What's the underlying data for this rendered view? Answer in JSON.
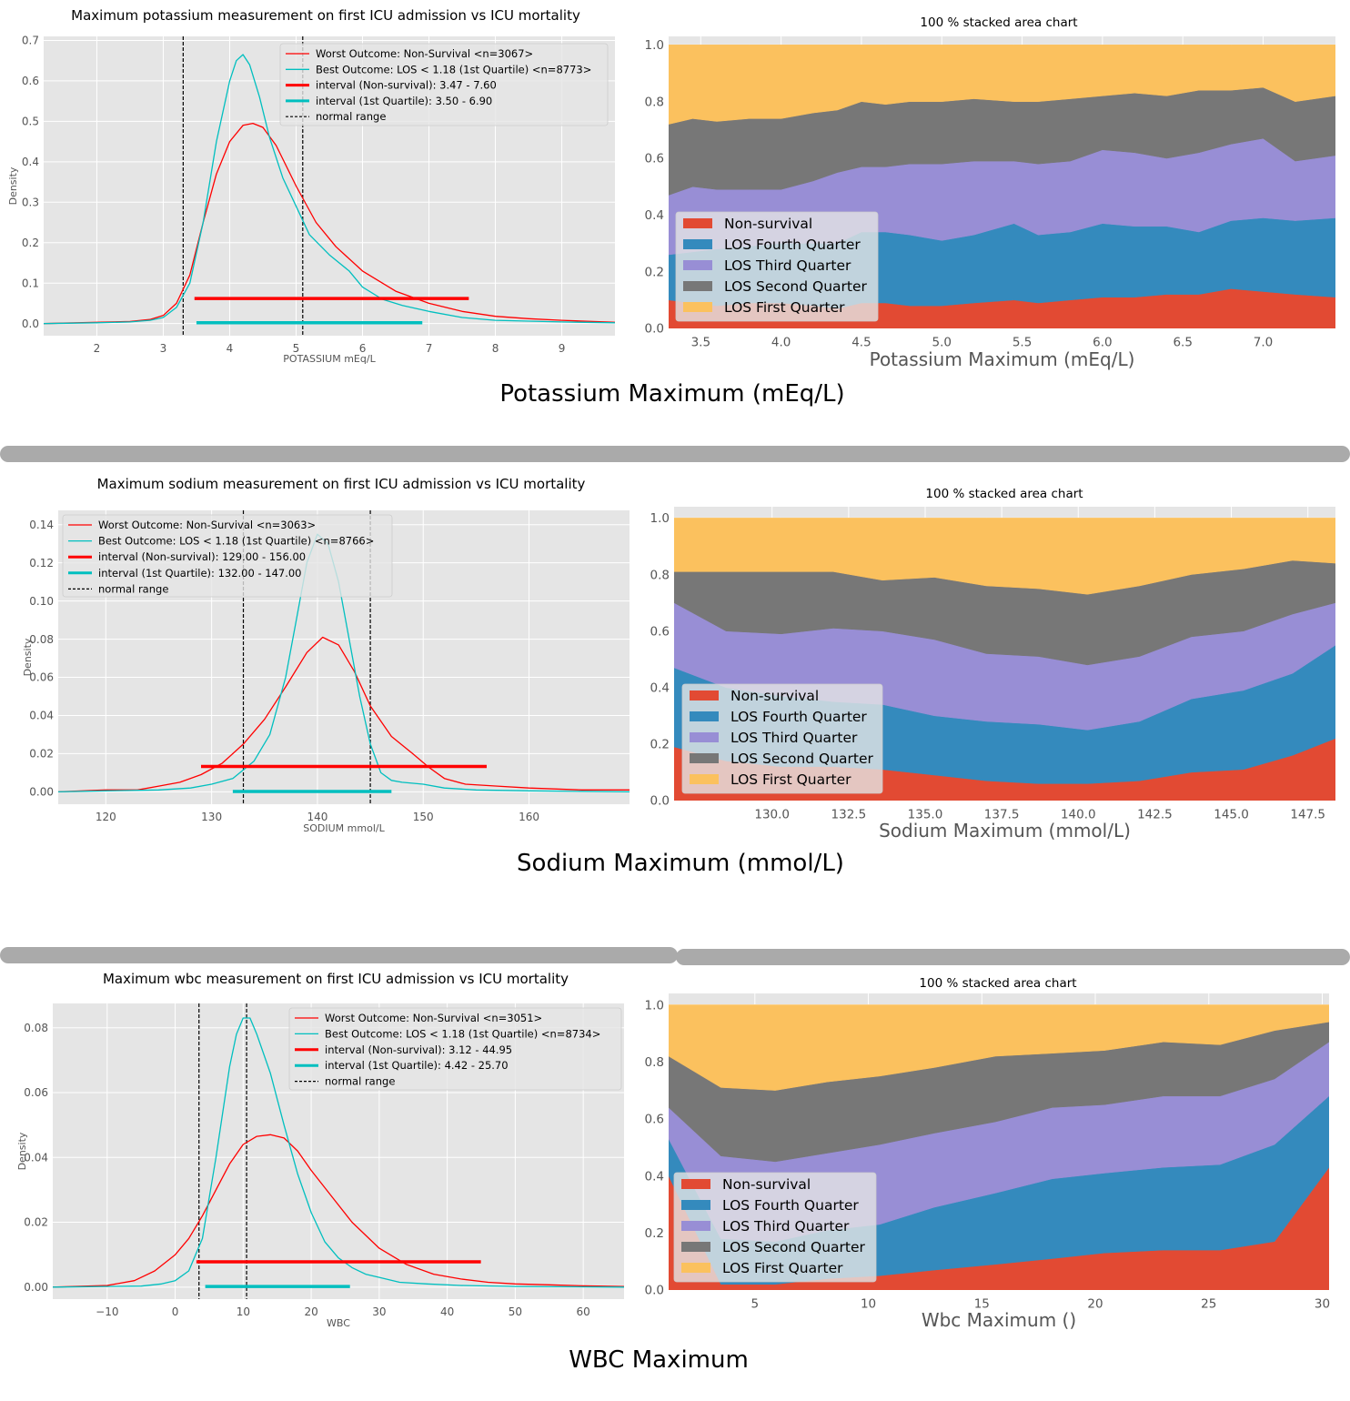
{
  "colors": {
    "nonsurvival": "#ff0000",
    "best": "#00bfbf",
    "normal": "#000000",
    "area_nonsurvival": "#e24a33",
    "area_fourth": "#348abd",
    "area_third": "#988ed5",
    "area_second": "#777777",
    "area_first": "#fbc15e",
    "panel_bg": "#e5e5e5",
    "divider": "#aaaaaa"
  },
  "panel_titles": [
    "Potassium Maximum (mEq/L)",
    "Sodium Maximum (mmol/L)",
    "WBC Maximum"
  ],
  "stacked_legend": [
    "Non-survival",
    "LOS Fourth Quarter",
    "LOS Third Quarter",
    "LOS Second Quarter",
    "LOS First Quarter"
  ],
  "chart_data": [
    {
      "type": "line",
      "title": "Maximum potassium measurement on first ICU admission vs ICU mortality",
      "xlabel": "POTASSIUM mEq/L",
      "ylabel": "Density",
      "xlim": [
        1.2,
        9.8
      ],
      "ylim": [
        -0.03,
        0.71
      ],
      "xticks": [
        2,
        3,
        4,
        5,
        6,
        7,
        8,
        9
      ],
      "yticks": [
        0.0,
        0.1,
        0.2,
        0.3,
        0.4,
        0.5,
        0.6,
        0.7
      ],
      "ytick_labels": [
        "0.0",
        "0.1",
        "0.2",
        "0.3",
        "0.4",
        "0.5",
        "0.6",
        "0.7"
      ],
      "legend": [
        "Worst Outcome: Non-Survival <n=3067>",
        "Best Outcome: LOS < 1.18 (1st Quartile) <n=8773>",
        "interval (Non-survival): 3.47 - 7.60",
        "interval (1st Quartile): 3.50 - 6.90",
        "normal range"
      ],
      "series": [
        {
          "name": "Worst Outcome: Non-Survival",
          "x": [
            1.2,
            2.0,
            2.5,
            2.8,
            3.0,
            3.2,
            3.4,
            3.6,
            3.8,
            4.0,
            4.2,
            4.35,
            4.5,
            4.7,
            5.0,
            5.3,
            5.6,
            6.0,
            6.5,
            7.0,
            7.5,
            8.0,
            8.5,
            9.0,
            9.8
          ],
          "y": [
            0.0,
            0.003,
            0.005,
            0.01,
            0.02,
            0.05,
            0.12,
            0.25,
            0.37,
            0.45,
            0.49,
            0.495,
            0.485,
            0.44,
            0.34,
            0.25,
            0.19,
            0.13,
            0.08,
            0.05,
            0.03,
            0.018,
            0.012,
            0.008,
            0.003
          ]
        },
        {
          "name": "Best Outcome: LOS < 1.18 (1st Quartile)",
          "x": [
            1.2,
            2.0,
            2.5,
            2.8,
            3.0,
            3.2,
            3.4,
            3.6,
            3.8,
            4.0,
            4.1,
            4.2,
            4.3,
            4.45,
            4.6,
            4.8,
            5.0,
            5.2,
            5.5,
            5.8,
            6.0,
            6.3,
            6.6,
            7.0,
            7.5,
            8.0,
            9.0,
            9.8
          ],
          "y": [
            0.0,
            0.002,
            0.004,
            0.008,
            0.015,
            0.04,
            0.1,
            0.25,
            0.45,
            0.6,
            0.65,
            0.665,
            0.64,
            0.56,
            0.46,
            0.36,
            0.29,
            0.22,
            0.17,
            0.13,
            0.09,
            0.06,
            0.045,
            0.03,
            0.015,
            0.008,
            0.004,
            0.002
          ]
        }
      ],
      "intervals": [
        {
          "name": "interval (Non-survival)",
          "from": 3.47,
          "to": 7.6,
          "y": 0.062
        },
        {
          "name": "interval (1st Quartile)",
          "from": 3.5,
          "to": 6.9,
          "y": 0.002
        }
      ],
      "normal_range": [
        3.3,
        5.1
      ]
    },
    {
      "type": "area",
      "stacked": "percent",
      "title": "100 % stacked area chart",
      "xlabel": "Potassium Maximum (mEq/L)",
      "xlim": [
        3.3,
        7.45
      ],
      "ylim": [
        0,
        1.03
      ],
      "xticks": [
        3.5,
        4.0,
        4.5,
        5.0,
        5.5,
        6.0,
        6.5,
        7.0
      ],
      "xtick_labels": [
        "3.5",
        "4.0",
        "4.5",
        "5.0",
        "5.5",
        "6.0",
        "6.5",
        "7.0"
      ],
      "yticks": [
        0.0,
        0.2,
        0.4,
        0.6,
        0.8,
        1.0
      ],
      "ytick_labels": [
        "0.0",
        "0.2",
        "0.4",
        "0.6",
        "0.8",
        "1.0"
      ],
      "x": [
        3.3,
        3.45,
        3.6,
        3.8,
        4.0,
        4.2,
        4.35,
        4.5,
        4.65,
        4.8,
        5.0,
        5.2,
        5.45,
        5.6,
        5.8,
        6.0,
        6.2,
        6.4,
        6.6,
        6.8,
        7.0,
        7.2,
        7.45
      ],
      "series": [
        {
          "name": "Non-survival",
          "values": [
            0.1,
            0.09,
            0.08,
            0.09,
            0.09,
            0.08,
            0.07,
            0.09,
            0.09,
            0.08,
            0.08,
            0.09,
            0.1,
            0.09,
            0.1,
            0.11,
            0.11,
            0.12,
            0.12,
            0.14,
            0.13,
            0.12,
            0.11
          ]
        },
        {
          "name": "LOS Fourth Quarter",
          "values": [
            0.16,
            0.18,
            0.2,
            0.2,
            0.21,
            0.22,
            0.23,
            0.25,
            0.25,
            0.25,
            0.23,
            0.24,
            0.27,
            0.24,
            0.24,
            0.26,
            0.25,
            0.24,
            0.22,
            0.24,
            0.26,
            0.26,
            0.28
          ]
        },
        {
          "name": "LOS Third Quarter",
          "values": [
            0.21,
            0.23,
            0.21,
            0.2,
            0.19,
            0.22,
            0.25,
            0.23,
            0.23,
            0.25,
            0.27,
            0.26,
            0.22,
            0.25,
            0.25,
            0.26,
            0.26,
            0.24,
            0.28,
            0.27,
            0.28,
            0.21,
            0.22
          ]
        },
        {
          "name": "LOS Second Quarter",
          "values": [
            0.25,
            0.24,
            0.24,
            0.25,
            0.25,
            0.24,
            0.22,
            0.23,
            0.22,
            0.22,
            0.22,
            0.22,
            0.21,
            0.22,
            0.22,
            0.19,
            0.21,
            0.22,
            0.22,
            0.19,
            0.18,
            0.21,
            0.21
          ]
        },
        {
          "name": "LOS First Quarter",
          "values": [
            0.28,
            0.26,
            0.27,
            0.26,
            0.26,
            0.24,
            0.23,
            0.2,
            0.21,
            0.2,
            0.2,
            0.19,
            0.2,
            0.2,
            0.19,
            0.18,
            0.17,
            0.18,
            0.16,
            0.16,
            0.15,
            0.2,
            0.18
          ]
        }
      ]
    },
    {
      "type": "line",
      "title": "Maximum sodium measurement on first ICU admission vs ICU mortality",
      "xlabel": "SODIUM mmol/L",
      "ylabel": "Density",
      "xlim": [
        115.5,
        169.5
      ],
      "ylim": [
        -0.0065,
        0.1475
      ],
      "xticks": [
        120,
        130,
        140,
        150,
        160
      ],
      "yticks": [
        0.0,
        0.02,
        0.04,
        0.06,
        0.08,
        0.1,
        0.12,
        0.14
      ],
      "ytick_labels": [
        "0.00",
        "0.02",
        "0.04",
        "0.06",
        "0.08",
        "0.10",
        "0.12",
        "0.14"
      ],
      "legend": [
        "Worst Outcome: Non-Survival <n=3063>",
        "Best Outcome: LOS < 1.18 (1st Quartile) <n=8766>",
        "interval (Non-survival): 129.00 - 156.00",
        "interval (1st Quartile): 132.00 - 147.00",
        "normal range"
      ],
      "series": [
        {
          "name": "Worst Outcome: Non-Survival",
          "x": [
            115.5,
            120,
            123,
            125,
            127,
            129,
            131,
            133,
            135,
            137,
            139,
            140.5,
            142,
            143.5,
            145,
            147,
            149,
            150.5,
            152,
            154,
            157,
            160,
            165,
            169.5
          ],
          "y": [
            0.0,
            0.001,
            0.001,
            0.003,
            0.005,
            0.009,
            0.015,
            0.025,
            0.038,
            0.055,
            0.073,
            0.081,
            0.077,
            0.063,
            0.045,
            0.029,
            0.02,
            0.013,
            0.007,
            0.004,
            0.003,
            0.002,
            0.001,
            0.001
          ]
        },
        {
          "name": "Best Outcome: LOS < 1.18 (1st Quartile)",
          "x": [
            115.5,
            120,
            125,
            128,
            130,
            132,
            134,
            135.5,
            137,
            138,
            139,
            140,
            141,
            142,
            143,
            144,
            145,
            146,
            147,
            148,
            150,
            152,
            155,
            160,
            169.5
          ],
          "y": [
            0.0,
            0.0005,
            0.001,
            0.002,
            0.004,
            0.007,
            0.016,
            0.03,
            0.06,
            0.09,
            0.12,
            0.135,
            0.13,
            0.11,
            0.08,
            0.05,
            0.025,
            0.01,
            0.006,
            0.005,
            0.004,
            0.002,
            0.001,
            0.0005,
            0.0
          ]
        }
      ],
      "intervals": [
        {
          "name": "interval (Non-survival)",
          "from": 129.0,
          "to": 156.0,
          "y": 0.0133
        },
        {
          "name": "interval (1st Quartile)",
          "from": 132.0,
          "to": 147.0,
          "y": 0.0002
        }
      ],
      "normal_range": [
        133,
        145
      ]
    },
    {
      "type": "area",
      "stacked": "percent",
      "title": "100 % stacked area chart",
      "xlabel": "Sodium Maximum (mmol/L)",
      "xlim": [
        126.8,
        148.4
      ],
      "ylim": [
        0,
        1.04
      ],
      "xticks": [
        130,
        132.5,
        135,
        137.5,
        140,
        142.5,
        145,
        147.5
      ],
      "xtick_labels": [
        "130.0",
        "132.5",
        "135.0",
        "137.5",
        "140.0",
        "142.5",
        "145.0",
        "147.5"
      ],
      "yticks": [
        0.0,
        0.2,
        0.4,
        0.6,
        0.8,
        1.0
      ],
      "ytick_labels": [
        "0.0",
        "0.2",
        "0.4",
        "0.6",
        "0.8",
        "1.0"
      ],
      "x": [
        126.8,
        128.5,
        130.3,
        132.0,
        133.6,
        135.3,
        137.0,
        138.7,
        140.3,
        142.0,
        143.7,
        145.4,
        147.0,
        148.4
      ],
      "series": [
        {
          "name": "Non-survival",
          "values": [
            0.19,
            0.14,
            0.12,
            0.12,
            0.11,
            0.09,
            0.07,
            0.06,
            0.06,
            0.07,
            0.1,
            0.11,
            0.16,
            0.22
          ]
        },
        {
          "name": "LOS Fourth Quarter",
          "values": [
            0.28,
            0.26,
            0.25,
            0.23,
            0.23,
            0.21,
            0.21,
            0.21,
            0.19,
            0.21,
            0.26,
            0.28,
            0.29,
            0.33
          ]
        },
        {
          "name": "LOS Third Quarter",
          "values": [
            0.23,
            0.2,
            0.22,
            0.26,
            0.26,
            0.27,
            0.24,
            0.24,
            0.23,
            0.23,
            0.22,
            0.21,
            0.21,
            0.15
          ]
        },
        {
          "name": "LOS Second Quarter",
          "values": [
            0.11,
            0.21,
            0.22,
            0.2,
            0.18,
            0.22,
            0.24,
            0.24,
            0.25,
            0.25,
            0.22,
            0.22,
            0.19,
            0.14
          ]
        },
        {
          "name": "LOS First Quarter",
          "values": [
            0.19,
            0.19,
            0.19,
            0.19,
            0.22,
            0.21,
            0.24,
            0.25,
            0.27,
            0.24,
            0.2,
            0.18,
            0.15,
            0.16
          ]
        }
      ]
    },
    {
      "type": "line",
      "title": "Maximum wbc measurement on first ICU admission vs ICU mortality",
      "xlabel": "WBC",
      "ylabel": "Density",
      "xlim": [
        -18,
        66
      ],
      "ylim": [
        -0.0037,
        0.0875
      ],
      "xticks": [
        -10,
        0,
        10,
        20,
        30,
        40,
        50,
        60
      ],
      "xtick_labels": [
        "−10",
        "0",
        "10",
        "20",
        "30",
        "40",
        "50",
        "60"
      ],
      "yticks": [
        0.0,
        0.02,
        0.04,
        0.06,
        0.08
      ],
      "ytick_labels": [
        "0.00",
        "0.02",
        "0.04",
        "0.06",
        "0.08"
      ],
      "legend": [
        "Worst Outcome: Non-Survival <n=3051>",
        "Best Outcome: LOS < 1.18 (1st Quartile) <n=8734>",
        "interval (Non-survival): 3.12 - 44.95",
        "interval (1st Quartile): 4.42 - 25.70",
        "normal range"
      ],
      "series": [
        {
          "name": "Worst Outcome: Non-Survival",
          "x": [
            -18,
            -10,
            -6,
            -3,
            0,
            2,
            4,
            6,
            8,
            10,
            12,
            14,
            16,
            18,
            20,
            23,
            26,
            30,
            34,
            38,
            42,
            46,
            50,
            55,
            60,
            66
          ],
          "y": [
            0.0,
            0.0005,
            0.002,
            0.005,
            0.01,
            0.015,
            0.022,
            0.03,
            0.038,
            0.044,
            0.0465,
            0.047,
            0.046,
            0.042,
            0.036,
            0.028,
            0.02,
            0.012,
            0.007,
            0.004,
            0.0025,
            0.0015,
            0.001,
            0.0007,
            0.0004,
            0.0002
          ]
        },
        {
          "name": "Best Outcome: LOS < 1.18 (1st Quartile)",
          "x": [
            -18,
            -5,
            -2,
            0,
            2,
            4,
            6,
            8,
            9,
            10,
            11,
            12,
            14,
            16,
            18,
            20,
            22,
            24,
            26,
            28,
            30,
            33,
            37,
            42,
            50,
            66
          ],
          "y": [
            0.0,
            0.0003,
            0.001,
            0.002,
            0.005,
            0.015,
            0.04,
            0.068,
            0.078,
            0.083,
            0.083,
            0.078,
            0.066,
            0.05,
            0.035,
            0.023,
            0.014,
            0.009,
            0.006,
            0.004,
            0.003,
            0.0015,
            0.001,
            0.0005,
            0.0002,
            0.0
          ]
        }
      ],
      "intervals": [
        {
          "name": "interval (Non-survival)",
          "from": 3.12,
          "to": 44.95,
          "y": 0.0078
        },
        {
          "name": "interval (1st Quartile)",
          "from": 4.42,
          "to": 25.7,
          "y": 0.0002
        }
      ],
      "normal_range": [
        3.5,
        10.5
      ]
    },
    {
      "type": "area",
      "stacked": "percent",
      "title": "100 % stacked area chart",
      "xlabel": "Wbc Maximum ()",
      "xlim": [
        1.2,
        30.3
      ],
      "ylim": [
        0,
        1.04
      ],
      "xticks": [
        5,
        10,
        15,
        20,
        25,
        30
      ],
      "xtick_labels": [
        "5",
        "10",
        "15",
        "20",
        "25",
        "30"
      ],
      "yticks": [
        0.0,
        0.2,
        0.4,
        0.6,
        0.8,
        1.0
      ],
      "ytick_labels": [
        "0.0",
        "0.2",
        "0.4",
        "0.6",
        "0.8",
        "1.0"
      ],
      "x": [
        1.2,
        3.5,
        5.9,
        8.2,
        10.5,
        12.9,
        15.6,
        18.1,
        20.4,
        23.0,
        25.5,
        27.9,
        30.3
      ],
      "series": [
        {
          "name": "Non-survival",
          "values": [
            0.4,
            0.02,
            0.02,
            0.04,
            0.05,
            0.07,
            0.09,
            0.11,
            0.13,
            0.14,
            0.14,
            0.17,
            0.43
          ]
        },
        {
          "name": "LOS Fourth Quarter",
          "values": [
            0.13,
            0.16,
            0.15,
            0.17,
            0.18,
            0.22,
            0.25,
            0.28,
            0.28,
            0.29,
            0.3,
            0.34,
            0.25
          ]
        },
        {
          "name": "LOS Third Quarter",
          "values": [
            0.11,
            0.29,
            0.28,
            0.27,
            0.28,
            0.26,
            0.25,
            0.25,
            0.24,
            0.25,
            0.24,
            0.23,
            0.19
          ]
        },
        {
          "name": "LOS Second Quarter",
          "values": [
            0.18,
            0.24,
            0.25,
            0.25,
            0.24,
            0.23,
            0.23,
            0.19,
            0.19,
            0.19,
            0.18,
            0.17,
            0.07
          ]
        },
        {
          "name": "LOS First Quarter",
          "values": [
            0.18,
            0.29,
            0.3,
            0.27,
            0.25,
            0.22,
            0.18,
            0.17,
            0.16,
            0.13,
            0.14,
            0.09,
            0.06
          ]
        }
      ]
    }
  ]
}
